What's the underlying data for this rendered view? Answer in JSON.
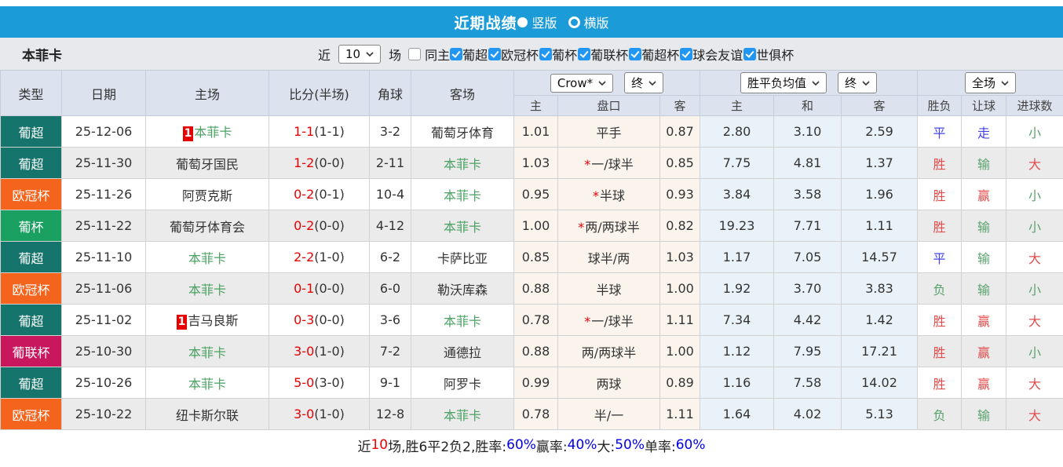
{
  "titlebar": {
    "title": "近期战绩",
    "vertical_label": "竖版",
    "horizontal_label": "横版"
  },
  "filter": {
    "team": "本菲卡",
    "near_label": "近",
    "games_count": "10",
    "games_label": "场",
    "same_home_label": "同主",
    "leagues": [
      "葡超",
      "欧冠杯",
      "葡杯",
      "葡联杯",
      "葡超杯",
      "球会友谊",
      "世俱杯"
    ]
  },
  "colors": {
    "league": {
      "葡超": "#15746b",
      "欧冠杯": "#f4641d",
      "葡杯": "#1aa061",
      "葡联杯": "#c9175d"
    },
    "accent_blue": "#1b9bd8",
    "checkbox_blue": "#2196f3"
  },
  "table": {
    "main_headers": [
      "类型",
      "日期",
      "主场",
      "比分(半场)",
      "角球",
      "客场"
    ],
    "sub_headers": [
      "主",
      "盘口",
      "客",
      "主",
      "和",
      "客",
      "胜负",
      "让球",
      "进球数"
    ],
    "dropdowns": {
      "odds_source": "Crow*",
      "odds_source_time": "终",
      "avg_label": "胜平负均值",
      "avg_time": "终",
      "scope": "全场"
    },
    "rows": [
      {
        "type": "葡超",
        "date": "25-12-06",
        "home": {
          "name": "本菲卡",
          "self": true,
          "rank": "1"
        },
        "score_ft": "1-1",
        "score_ht": "(1-1)",
        "corners": "3-2",
        "away": {
          "name": "葡萄牙体育",
          "self": false
        },
        "odds": [
          "1.01",
          "0.87"
        ],
        "handicap": "平手",
        "handicap_star": false,
        "avg": [
          "2.80",
          "3.10",
          "2.59"
        ],
        "results": [
          {
            "text": "平",
            "c": "blue"
          },
          {
            "text": "走",
            "c": "blue"
          },
          {
            "text": "小",
            "c": "green"
          }
        ]
      },
      {
        "type": "葡超",
        "date": "25-11-30",
        "home": {
          "name": "葡萄牙国民",
          "self": false
        },
        "score_ft": "1-2",
        "score_ht": "(0-0)",
        "corners": "2-11",
        "away": {
          "name": "本菲卡",
          "self": true
        },
        "odds": [
          "1.03",
          "0.85"
        ],
        "handicap": "一/球半",
        "handicap_star": true,
        "avg": [
          "7.75",
          "4.81",
          "1.37"
        ],
        "results": [
          {
            "text": "胜",
            "c": "red"
          },
          {
            "text": "输",
            "c": "green"
          },
          {
            "text": "大",
            "c": "red"
          }
        ]
      },
      {
        "type": "欧冠杯",
        "date": "25-11-26",
        "home": {
          "name": "阿贾克斯",
          "self": false
        },
        "score_ft": "0-2",
        "score_ht": "(0-1)",
        "corners": "10-4",
        "away": {
          "name": "本菲卡",
          "self": true
        },
        "odds": [
          "0.95",
          "0.93"
        ],
        "handicap": "半球",
        "handicap_star": true,
        "avg": [
          "3.84",
          "3.58",
          "1.96"
        ],
        "results": [
          {
            "text": "胜",
            "c": "red"
          },
          {
            "text": "赢",
            "c": "red"
          },
          {
            "text": "小",
            "c": "green"
          }
        ]
      },
      {
        "type": "葡杯",
        "date": "25-11-22",
        "home": {
          "name": "葡萄牙体育会",
          "self": false
        },
        "score_ft": "0-2",
        "score_ht": "(0-0)",
        "corners": "4-12",
        "away": {
          "name": "本菲卡",
          "self": true
        },
        "odds": [
          "1.00",
          "0.82"
        ],
        "handicap": "两/两球半",
        "handicap_star": true,
        "avg": [
          "19.23",
          "7.71",
          "1.11"
        ],
        "results": [
          {
            "text": "胜",
            "c": "red"
          },
          {
            "text": "输",
            "c": "green"
          },
          {
            "text": "小",
            "c": "green"
          }
        ]
      },
      {
        "type": "葡超",
        "date": "25-11-10",
        "home": {
          "name": "本菲卡",
          "self": true
        },
        "score_ft": "2-2",
        "score_ht": "(1-0)",
        "corners": "6-2",
        "away": {
          "name": "卡萨比亚",
          "self": false
        },
        "odds": [
          "0.85",
          "1.03"
        ],
        "handicap": "球半/两",
        "handicap_star": false,
        "avg": [
          "1.17",
          "7.05",
          "14.57"
        ],
        "results": [
          {
            "text": "平",
            "c": "blue"
          },
          {
            "text": "输",
            "c": "green"
          },
          {
            "text": "大",
            "c": "red"
          }
        ]
      },
      {
        "type": "欧冠杯",
        "date": "25-11-06",
        "home": {
          "name": "本菲卡",
          "self": true
        },
        "score_ft": "0-1",
        "score_ht": "(0-0)",
        "corners": "6-0",
        "away": {
          "name": "勒沃库森",
          "self": false
        },
        "odds": [
          "0.88",
          "1.00"
        ],
        "handicap": "半球",
        "handicap_star": false,
        "avg": [
          "1.92",
          "3.70",
          "3.83"
        ],
        "results": [
          {
            "text": "负",
            "c": "green"
          },
          {
            "text": "输",
            "c": "green"
          },
          {
            "text": "小",
            "c": "green"
          }
        ]
      },
      {
        "type": "葡超",
        "date": "25-11-02",
        "home": {
          "name": "吉马良斯",
          "self": false,
          "rank": "1"
        },
        "score_ft": "0-3",
        "score_ht": "(0-0)",
        "corners": "3-6",
        "away": {
          "name": "本菲卡",
          "self": true
        },
        "odds": [
          "0.78",
          "1.11"
        ],
        "handicap": "一/球半",
        "handicap_star": true,
        "avg": [
          "7.34",
          "4.42",
          "1.42"
        ],
        "results": [
          {
            "text": "胜",
            "c": "red"
          },
          {
            "text": "赢",
            "c": "red"
          },
          {
            "text": "大",
            "c": "red"
          }
        ]
      },
      {
        "type": "葡联杯",
        "date": "25-10-30",
        "home": {
          "name": "本菲卡",
          "self": true
        },
        "score_ft": "3-0",
        "score_ht": "(1-0)",
        "corners": "7-2",
        "away": {
          "name": "通德拉",
          "self": false
        },
        "odds": [
          "0.88",
          "1.00"
        ],
        "handicap": "两/两球半",
        "handicap_star": false,
        "avg": [
          "1.12",
          "7.95",
          "17.21"
        ],
        "results": [
          {
            "text": "胜",
            "c": "red"
          },
          {
            "text": "赢",
            "c": "red"
          },
          {
            "text": "小",
            "c": "green"
          }
        ]
      },
      {
        "type": "葡超",
        "date": "25-10-26",
        "home": {
          "name": "本菲卡",
          "self": true
        },
        "score_ft": "5-0",
        "score_ht": "(3-0)",
        "corners": "9-1",
        "away": {
          "name": "阿罗卡",
          "self": false
        },
        "odds": [
          "0.99",
          "0.89"
        ],
        "handicap": "两球",
        "handicap_star": false,
        "avg": [
          "1.16",
          "7.58",
          "14.02"
        ],
        "results": [
          {
            "text": "胜",
            "c": "red"
          },
          {
            "text": "赢",
            "c": "red"
          },
          {
            "text": "大",
            "c": "red"
          }
        ]
      },
      {
        "type": "欧冠杯",
        "date": "25-10-22",
        "home": {
          "name": "纽卡斯尔联",
          "self": false
        },
        "score_ft": "3-0",
        "score_ht": "(1-0)",
        "corners": "12-8",
        "away": {
          "name": "本菲卡",
          "self": true
        },
        "odds": [
          "0.78",
          "1.11"
        ],
        "handicap": "半/一",
        "handicap_star": false,
        "avg": [
          "1.64",
          "4.02",
          "5.13"
        ],
        "results": [
          {
            "text": "负",
            "c": "green"
          },
          {
            "text": "输",
            "c": "green"
          },
          {
            "text": "大",
            "c": "red"
          }
        ]
      }
    ]
  },
  "footer": {
    "segments": [
      {
        "text": "近",
        "c": "dark"
      },
      {
        "text": "10",
        "c": "red"
      },
      {
        "text": "场,胜6平2负2, ",
        "c": "dark"
      },
      {
        "text": "胜率:",
        "c": "dark"
      },
      {
        "text": "60%",
        "c": "blue"
      },
      {
        "text": " 赢率:",
        "c": "dark"
      },
      {
        "text": "40%",
        "c": "blue"
      },
      {
        "text": " 大:",
        "c": "dark"
      },
      {
        "text": "50%",
        "c": "blue"
      },
      {
        "text": " 单率:",
        "c": "dark"
      },
      {
        "text": "60%",
        "c": "blue"
      }
    ]
  }
}
